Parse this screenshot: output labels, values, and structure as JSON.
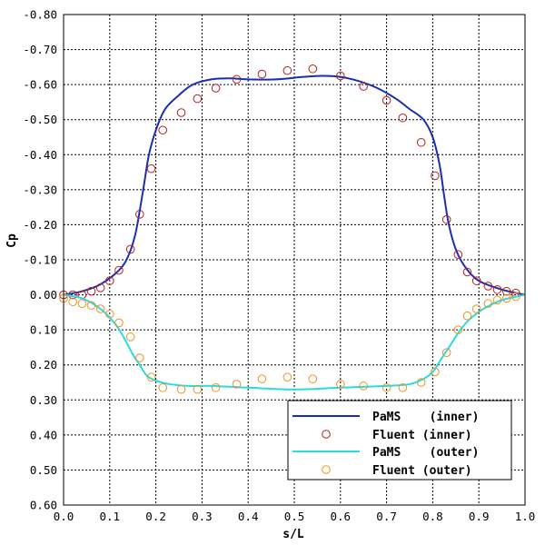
{
  "chart_data": {
    "type": "line",
    "xlabel": "s/L",
    "ylabel": "Cp",
    "xlim": [
      0.0,
      1.0
    ],
    "ylim": [
      0.6,
      -0.8
    ],
    "y_axis_inverted": true,
    "grid": true,
    "legend_position": "bottom-right",
    "x_ticks": [
      "0.0",
      "0.1",
      "0.2",
      "0.3",
      "0.4",
      "0.5",
      "0.6",
      "0.7",
      "0.8",
      "0.9",
      "1.0"
    ],
    "x_tick_values": [
      0.0,
      0.1,
      0.2,
      0.3,
      0.4,
      0.5,
      0.6,
      0.7,
      0.8,
      0.9,
      1.0
    ],
    "y_ticks": [
      "-0.80",
      "-0.70",
      "-0.60",
      "-0.50",
      "-0.40",
      "-0.30",
      "-0.20",
      "-0.10",
      "0.00",
      "0.10",
      "0.20",
      "0.30",
      "0.40",
      "0.50",
      "0.60"
    ],
    "y_tick_values": [
      -0.8,
      -0.7,
      -0.6,
      -0.5,
      -0.4,
      -0.3,
      -0.2,
      -0.1,
      0.0,
      0.1,
      0.2,
      0.3,
      0.4,
      0.5,
      0.6
    ],
    "series": [
      {
        "name": "PaMS    (inner)",
        "kind": "line",
        "color": "#1a2eb0",
        "x": [
          0.0,
          0.04,
          0.08,
          0.12,
          0.14,
          0.155,
          0.165,
          0.175,
          0.185,
          0.2,
          0.22,
          0.25,
          0.28,
          0.32,
          0.36,
          0.4,
          0.46,
          0.52,
          0.56,
          0.6,
          0.64,
          0.68,
          0.72,
          0.75,
          0.78,
          0.8,
          0.815,
          0.825,
          0.835,
          0.85,
          0.87,
          0.9,
          0.95,
          1.0
        ],
        "y": [
          0.0,
          -0.01,
          -0.03,
          -0.07,
          -0.11,
          -0.17,
          -0.24,
          -0.32,
          -0.4,
          -0.47,
          -0.53,
          -0.57,
          -0.6,
          -0.615,
          -0.618,
          -0.615,
          -0.615,
          -0.622,
          -0.625,
          -0.622,
          -0.61,
          -0.59,
          -0.56,
          -0.53,
          -0.5,
          -0.45,
          -0.37,
          -0.28,
          -0.2,
          -0.13,
          -0.08,
          -0.04,
          -0.015,
          0.0
        ]
      },
      {
        "name": "Fluent (inner)",
        "kind": "marker",
        "color": "#b52020",
        "x": [
          0.0,
          0.02,
          0.04,
          0.06,
          0.08,
          0.1,
          0.12,
          0.145,
          0.165,
          0.19,
          0.215,
          0.255,
          0.29,
          0.33,
          0.375,
          0.43,
          0.485,
          0.54,
          0.6,
          0.65,
          0.7,
          0.735,
          0.775,
          0.805,
          0.83,
          0.855,
          0.875,
          0.895,
          0.92,
          0.94,
          0.96,
          0.98
        ],
        "y": [
          0.0,
          0.0,
          0.0,
          -0.01,
          -0.02,
          -0.04,
          -0.07,
          -0.13,
          -0.23,
          -0.36,
          -0.47,
          -0.52,
          -0.56,
          -0.59,
          -0.615,
          -0.63,
          -0.64,
          -0.645,
          -0.625,
          -0.595,
          -0.555,
          -0.505,
          -0.435,
          -0.34,
          -0.215,
          -0.115,
          -0.065,
          -0.04,
          -0.025,
          -0.015,
          -0.01,
          -0.005
        ]
      },
      {
        "name": "PaMS    (outer)",
        "kind": "line",
        "color": "#25dde2",
        "x": [
          0.0,
          0.04,
          0.08,
          0.11,
          0.13,
          0.15,
          0.165,
          0.18,
          0.2,
          0.23,
          0.27,
          0.32,
          0.4,
          0.5,
          0.6,
          0.7,
          0.75,
          0.78,
          0.8,
          0.82,
          0.84,
          0.86,
          0.88,
          0.91,
          0.95,
          1.0
        ],
        "y": [
          0.0,
          0.01,
          0.04,
          0.08,
          0.12,
          0.17,
          0.2,
          0.23,
          0.245,
          0.255,
          0.26,
          0.26,
          0.265,
          0.27,
          0.265,
          0.26,
          0.255,
          0.24,
          0.22,
          0.18,
          0.14,
          0.1,
          0.07,
          0.04,
          0.015,
          0.0
        ]
      },
      {
        "name": "Fluent (outer)",
        "kind": "marker",
        "color": "#ef9020",
        "x": [
          0.0,
          0.02,
          0.04,
          0.06,
          0.08,
          0.1,
          0.12,
          0.145,
          0.165,
          0.19,
          0.215,
          0.255,
          0.29,
          0.33,
          0.375,
          0.43,
          0.485,
          0.54,
          0.6,
          0.65,
          0.7,
          0.735,
          0.775,
          0.805,
          0.83,
          0.855,
          0.875,
          0.895,
          0.92,
          0.94,
          0.96,
          0.98
        ],
        "y": [
          0.01,
          0.02,
          0.025,
          0.03,
          0.04,
          0.055,
          0.08,
          0.12,
          0.18,
          0.235,
          0.265,
          0.27,
          0.27,
          0.265,
          0.255,
          0.24,
          0.235,
          0.24,
          0.255,
          0.26,
          0.265,
          0.265,
          0.25,
          0.22,
          0.165,
          0.1,
          0.06,
          0.04,
          0.025,
          0.015,
          0.01,
          0.005
        ]
      }
    ]
  },
  "legend": {
    "entries": [
      {
        "label": "PaMS    (inner)",
        "symbol": "line",
        "color": "#1a2eb0"
      },
      {
        "label": "Fluent (inner)",
        "symbol": "circle",
        "color": "#b52020"
      },
      {
        "label": "PaMS    (outer)",
        "symbol": "line",
        "color": "#25dde2"
      },
      {
        "label": "Fluent (outer)",
        "symbol": "circle",
        "color": "#ef9020"
      }
    ]
  }
}
